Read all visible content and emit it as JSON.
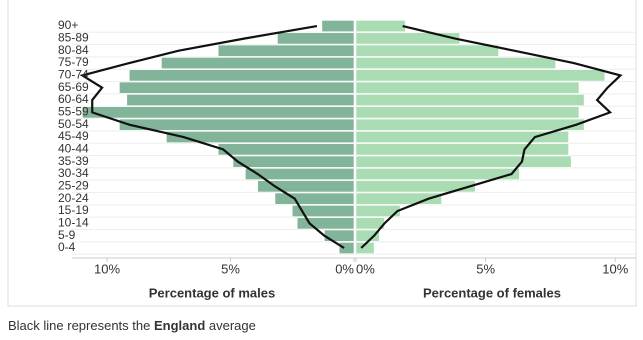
{
  "chart_data": {
    "type": "pyramid",
    "categories": [
      "0-4",
      "5-9",
      "10-14",
      "15-19",
      "20-24",
      "25-29",
      "30-34",
      "35-39",
      "40-44",
      "45-49",
      "50-54",
      "55-59",
      "60-64",
      "65-69",
      "70-74",
      "75-79",
      "80-84",
      "85-89",
      "90+"
    ],
    "series": [
      {
        "name": "Percentage of males",
        "color": "#82b49a",
        "values": [
          0.6,
          1.2,
          2.3,
          2.5,
          3.2,
          3.9,
          4.4,
          4.9,
          5.5,
          7.6,
          9.5,
          11.0,
          9.2,
          9.5,
          9.1,
          7.8,
          5.5,
          3.1,
          1.3
        ]
      },
      {
        "name": "Percentage of females",
        "color": "#a9dcb3",
        "values": [
          0.7,
          0.9,
          1.1,
          1.7,
          3.3,
          4.6,
          6.3,
          8.3,
          8.2,
          8.2,
          8.8,
          8.6,
          8.8,
          8.6,
          9.6,
          7.7,
          5.5,
          4.0,
          1.9
        ]
      }
    ],
    "lines": [
      {
        "color": "#111111",
        "values": [
          0.4,
          1.2,
          1.8,
          2.1,
          2.4,
          3.2,
          3.9,
          4.7,
          5.3,
          6.9,
          9.1,
          10.6,
          10.6,
          10.2,
          11.0,
          9.1,
          7.1,
          4.4,
          1.5
        ]
      },
      {
        "color": "#111111",
        "values": [
          0.2,
          0.7,
          1.1,
          1.6,
          2.8,
          4.4,
          6.0,
          6.4,
          6.5,
          6.9,
          8.5,
          9.8,
          9.3,
          9.7,
          10.2,
          8.4,
          6.1,
          3.8,
          1.8
        ]
      }
    ],
    "xlim_left": [
      0,
      11.5
    ],
    "xticks_left": [
      {
        "value": 10,
        "label": "10%"
      },
      {
        "value": 5,
        "label": "5%"
      },
      {
        "value": 0,
        "label": "0%"
      }
    ],
    "xlim_right": [
      0,
      10.8
    ],
    "xticks_right": [
      {
        "value": 0,
        "label": "0%"
      },
      {
        "value": 5,
        "label": "5%"
      },
      {
        "value": 10,
        "label": "10%"
      }
    ],
    "note": [
      "Black line represents the",
      "England",
      "average"
    ]
  }
}
